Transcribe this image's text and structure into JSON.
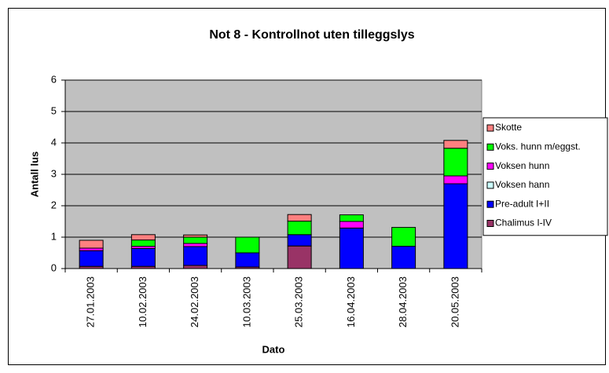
{
  "chart_data": {
    "type": "stacked_bar",
    "title": "Not 8 - Kontrollnot uten tilleggslys",
    "x_label": "Dato",
    "y_label": "Antall lus",
    "categories": [
      "27.01.2003",
      "10.02.2003",
      "24.02.2003",
      "10.03.2003",
      "25.03.2003",
      "16.04.2003",
      "28.04.2003",
      "20.05.2003"
    ],
    "series": [
      {
        "name": "Chalimus I-IV",
        "color": "#993366",
        "values": [
          0.07,
          0.07,
          0.1,
          0.05,
          0.72,
          0,
          0,
          0
        ]
      },
      {
        "name": "Pre-adult I+II",
        "color": "#0000ff",
        "values": [
          0.5,
          0.57,
          0.6,
          0.45,
          0.36,
          1.29,
          0.71,
          2.7
        ]
      },
      {
        "name": "Voksen hann",
        "color": "#ccffff",
        "values": [
          0,
          0,
          0,
          0,
          0,
          0,
          0,
          0
        ]
      },
      {
        "name": "Voksen hunn",
        "color": "#ff00ff",
        "values": [
          0.08,
          0.07,
          0.1,
          0,
          0,
          0.21,
          0,
          0.25
        ]
      },
      {
        "name": "Voks. hunn m/eggst.",
        "color": "#00ff00",
        "values": [
          0,
          0.2,
          0.2,
          0.5,
          0.43,
          0.21,
          0.6,
          0.88
        ]
      },
      {
        "name": "Skotte",
        "color": "#ff8080",
        "values": [
          0.25,
          0.17,
          0.07,
          0,
          0.21,
          0,
          0,
          0.25
        ]
      }
    ],
    "ylim": [
      0,
      6
    ],
    "yticks": [
      0,
      1,
      2,
      3,
      4,
      5,
      6
    ],
    "grid": true,
    "legend": "right",
    "plot_background": "#c0c0c0"
  }
}
